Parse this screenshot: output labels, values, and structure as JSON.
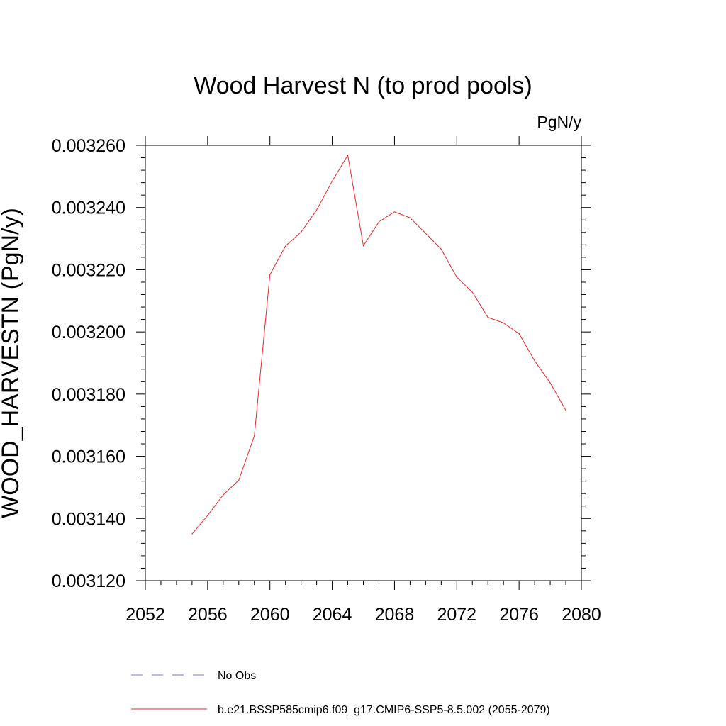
{
  "chart_data": {
    "type": "line",
    "title": "Wood Harvest N (to prod pools)",
    "units": "PgN/y",
    "ylabel": "WOOD_HARVESTN  (PgN/y)",
    "xlabel": "",
    "xlim": [
      2052,
      2080
    ],
    "ylim": [
      0.00312,
      0.00326
    ],
    "x_ticks": [
      2052,
      2056,
      2060,
      2064,
      2068,
      2072,
      2076,
      2080
    ],
    "x_tick_labels": [
      "2052",
      "2056",
      "2060",
      "2064",
      "2068",
      "2072",
      "2076",
      "2080"
    ],
    "y_ticks": [
      0.00312,
      0.00314,
      0.00316,
      0.00318,
      0.0032,
      0.00322,
      0.00324,
      0.00326
    ],
    "y_tick_labels": [
      "0.003120",
      "0.003140",
      "0.003160",
      "0.003180",
      "0.003200",
      "0.003220",
      "0.003240",
      "0.003260"
    ],
    "grid": false,
    "legend_position": "bottom",
    "series": [
      {
        "name": "b.e21.BSSP585cmip6.f09_g17.CMIP6-SSP5-8.5.002 (2055-2079)",
        "color": "#e8282d",
        "dash": "solid",
        "x": [
          2055,
          2056,
          2057,
          2058,
          2059,
          2060,
          2061,
          2062,
          2063,
          2064,
          2065,
          2066,
          2067,
          2068,
          2069,
          2070,
          2071,
          2072,
          2073,
          2074,
          2075,
          2076,
          2077,
          2078,
          2079
        ],
        "y": [
          0.003135,
          0.003141,
          0.0031476,
          0.0031523,
          0.0031666,
          0.0032184,
          0.0032276,
          0.0032321,
          0.0032392,
          0.0032485,
          0.0032568,
          0.0032277,
          0.0032354,
          0.0032386,
          0.0032367,
          0.0032317,
          0.0032266,
          0.0032176,
          0.0032128,
          0.0032047,
          0.0032029,
          0.0031994,
          0.0031907,
          0.0031836,
          0.0031748
        ]
      }
    ],
    "legend": [
      {
        "label": "No Obs",
        "color": "#7b6fc4",
        "dash": "dashed"
      },
      {
        "label": "b.e21.BSSP585cmip6.f09_g17.CMIP6-SSP5-8.5.002 (2055-2079)",
        "color": "#e8282d",
        "dash": "solid"
      }
    ]
  }
}
